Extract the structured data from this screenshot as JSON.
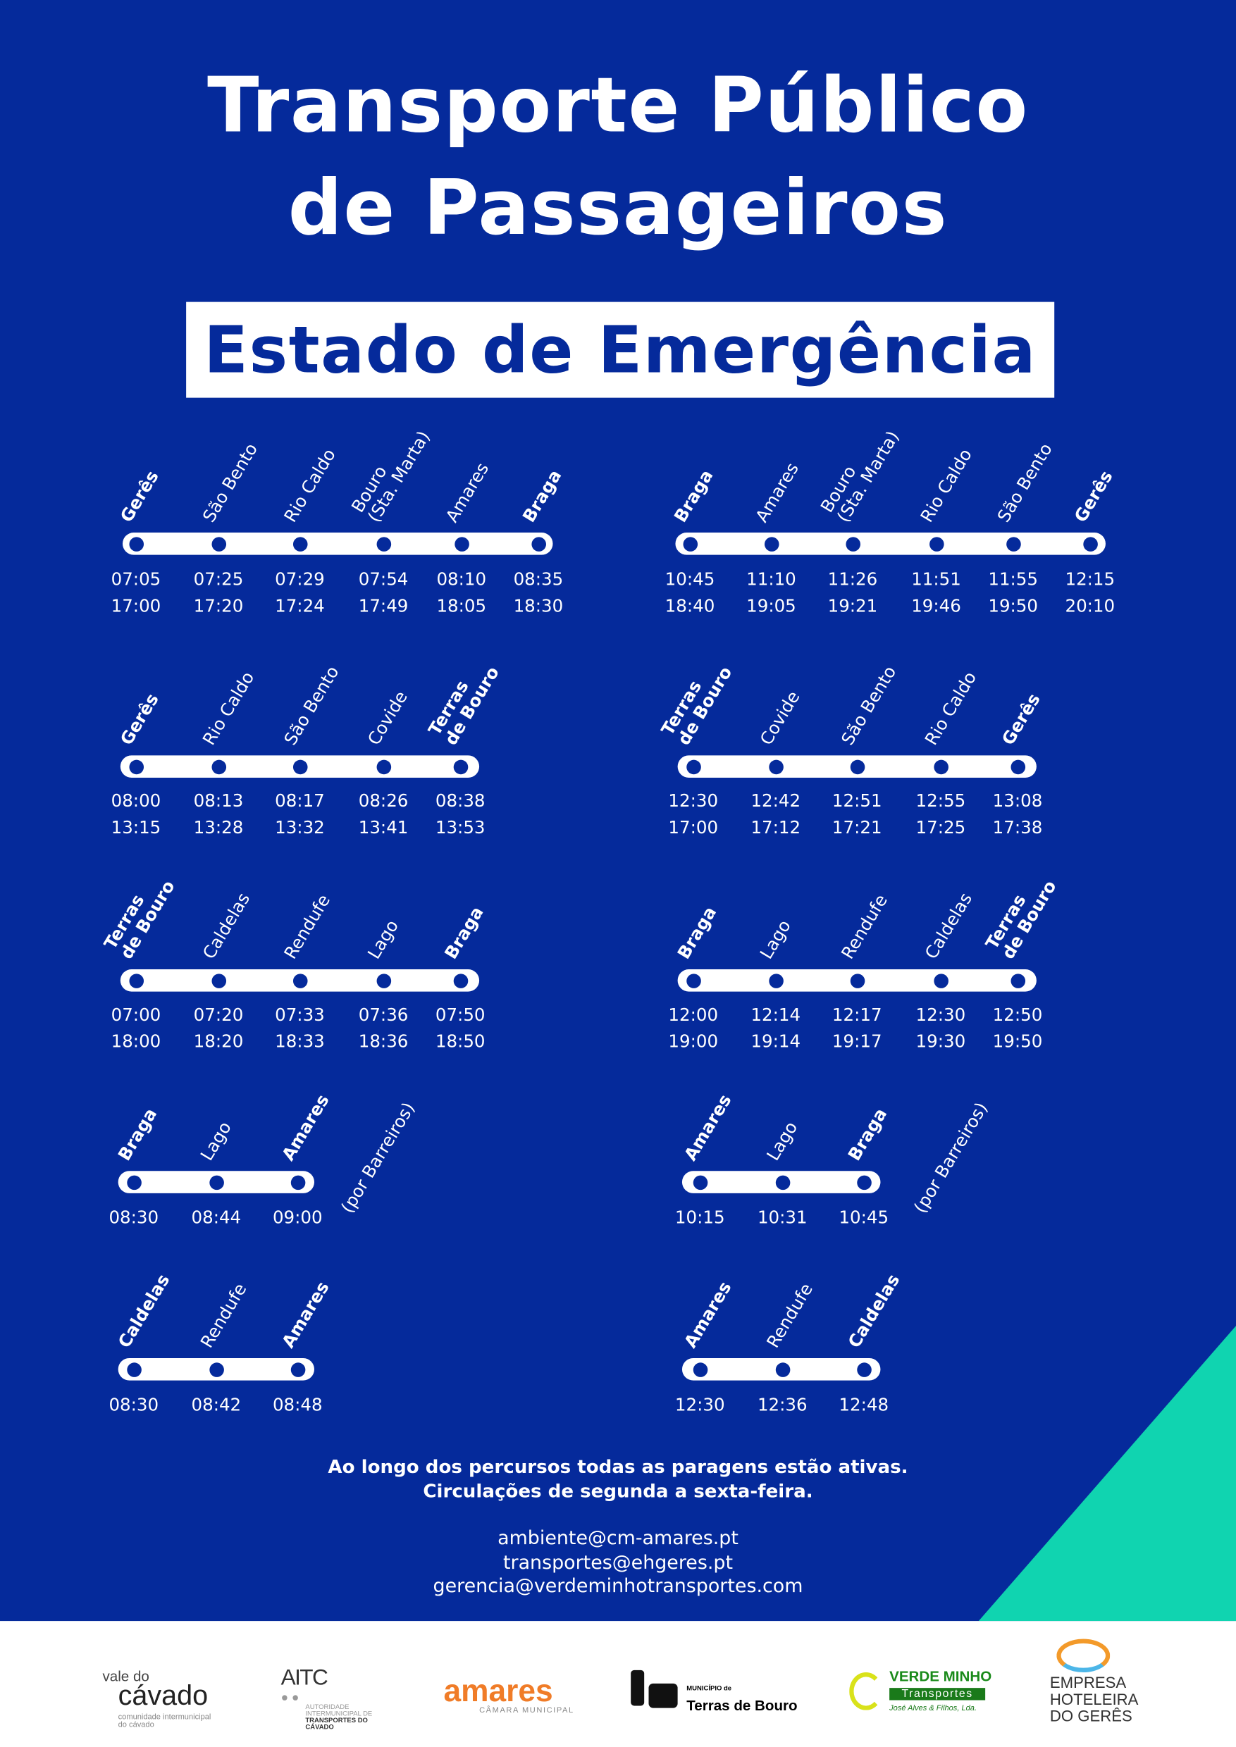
{
  "title_lines": [
    "Transporte Público",
    "de Passageiros"
  ],
  "subtitle": "Estado de Emergência",
  "colors": {
    "background": "#052a9b",
    "accent": "#10d4b0",
    "text": "#ffffff"
  },
  "routes": [
    {
      "stops": [
        {
          "name": [
            "Gerês"
          ],
          "bold": true
        },
        {
          "name": [
            "São Bento"
          ]
        },
        {
          "name": [
            "Rio Caldo"
          ]
        },
        {
          "name": [
            "Bouro",
            "(Sta. Marta)"
          ]
        },
        {
          "name": [
            "Amares"
          ]
        },
        {
          "name": [
            "Braga"
          ],
          "bold": true
        }
      ],
      "times": [
        [
          "07:05",
          "07:25",
          "07:29",
          "07:54",
          "08:10",
          "08:35"
        ],
        [
          "17:00",
          "17:20",
          "17:24",
          "17:49",
          "18:05",
          "18:30"
        ]
      ]
    },
    {
      "stops": [
        {
          "name": [
            "Braga"
          ],
          "bold": true
        },
        {
          "name": [
            "Amares"
          ]
        },
        {
          "name": [
            "Bouro",
            "(Sta. Marta)"
          ]
        },
        {
          "name": [
            "Rio Caldo"
          ]
        },
        {
          "name": [
            "São Bento"
          ]
        },
        {
          "name": [
            "Gerês"
          ],
          "bold": true
        }
      ],
      "times": [
        [
          "10:45",
          "11:10",
          "11:26",
          "11:51",
          "11:55",
          "12:15"
        ],
        [
          "18:40",
          "19:05",
          "19:21",
          "19:46",
          "19:50",
          "20:10"
        ]
      ]
    },
    {
      "stops": [
        {
          "name": [
            "Gerês"
          ],
          "bold": true
        },
        {
          "name": [
            "Rio Caldo"
          ]
        },
        {
          "name": [
            "São Bento"
          ]
        },
        {
          "name": [
            "Covide"
          ]
        },
        {
          "name": [
            "Terras",
            "de Bouro"
          ],
          "bold": true
        }
      ],
      "times": [
        [
          "08:00",
          "08:13",
          "08:17",
          "08:26",
          "08:38"
        ],
        [
          "13:15",
          "13:28",
          "13:32",
          "13:41",
          "13:53"
        ]
      ]
    },
    {
      "stops": [
        {
          "name": [
            "Terras",
            "de Bouro"
          ],
          "bold": true
        },
        {
          "name": [
            "Covide"
          ]
        },
        {
          "name": [
            "São Bento"
          ]
        },
        {
          "name": [
            "Rio Caldo"
          ]
        },
        {
          "name": [
            "Gerês"
          ],
          "bold": true
        }
      ],
      "times": [
        [
          "12:30",
          "12:42",
          "12:51",
          "12:55",
          "13:08"
        ],
        [
          "17:00",
          "17:12",
          "17:21",
          "17:25",
          "17:38"
        ]
      ]
    },
    {
      "stops": [
        {
          "name": [
            "Terras",
            "de Bouro"
          ],
          "bold": true
        },
        {
          "name": [
            "Caldelas"
          ]
        },
        {
          "name": [
            "Rendufe"
          ]
        },
        {
          "name": [
            "Lago"
          ]
        },
        {
          "name": [
            "Braga"
          ],
          "bold": true
        }
      ],
      "times": [
        [
          "07:00",
          "07:20",
          "07:33",
          "07:36",
          "07:50"
        ],
        [
          "18:00",
          "18:20",
          "18:33",
          "18:36",
          "18:50"
        ]
      ]
    },
    {
      "stops": [
        {
          "name": [
            "Braga"
          ],
          "bold": true
        },
        {
          "name": [
            "Lago"
          ]
        },
        {
          "name": [
            "Rendufe"
          ]
        },
        {
          "name": [
            "Caldelas"
          ]
        },
        {
          "name": [
            "Terras",
            "de Bouro"
          ],
          "bold": true
        }
      ],
      "times": [
        [
          "12:00",
          "12:14",
          "12:17",
          "12:30",
          "12:50"
        ],
        [
          "19:00",
          "19:14",
          "19:17",
          "19:30",
          "19:50"
        ]
      ]
    },
    {
      "stops": [
        {
          "name": [
            "Braga"
          ],
          "bold": true
        },
        {
          "name": [
            "Lago"
          ]
        },
        {
          "name": [
            "Amares"
          ],
          "bold": true
        }
      ],
      "times": [
        [
          "08:30",
          "08:44",
          "09:00"
        ]
      ],
      "note": "(por Barreiros)"
    },
    {
      "stops": [
        {
          "name": [
            "Amares"
          ],
          "bold": true
        },
        {
          "name": [
            "Lago"
          ]
        },
        {
          "name": [
            "Braga"
          ],
          "bold": true
        }
      ],
      "times": [
        [
          "10:15",
          "10:31",
          "10:45"
        ]
      ],
      "note": "(por Barreiros)"
    },
    {
      "stops": [
        {
          "name": [
            "Caldelas"
          ],
          "bold": true
        },
        {
          "name": [
            "Rendufe"
          ]
        },
        {
          "name": [
            "Amares"
          ],
          "bold": true
        }
      ],
      "times": [
        [
          "08:30",
          "08:42",
          "08:48"
        ]
      ]
    },
    {
      "stops": [
        {
          "name": [
            "Amares"
          ],
          "bold": true
        },
        {
          "name": [
            "Rendufe"
          ]
        },
        {
          "name": [
            "Caldelas"
          ],
          "bold": true
        }
      ],
      "times": [
        [
          "12:30",
          "12:36",
          "12:48"
        ]
      ]
    }
  ],
  "footer": {
    "notes": [
      "Ao longo dos percursos todas as paragens estão ativas.",
      "Circulações de segunda a sexta-feira."
    ],
    "emails": [
      "ambiente@cm-amares.pt",
      "transportes@ehgeres.pt",
      "gerencia@verdeminhotransportes.com"
    ]
  },
  "logos": {
    "vale_do_cavado": [
      "vale do",
      "cávado",
      "comunidade intermunicipal do cávado"
    ],
    "aitc": [
      "AITC",
      "AUTORIDADE INTERMUNICIPAL DE",
      "TRANSPORTES DO CÁVADO"
    ],
    "amares": [
      "amares",
      "CÂMARA MUNICIPAL"
    ],
    "terras_de_bouro": [
      "MUNICÍPIO de",
      "Terras de Bouro"
    ],
    "verde_minho": [
      "VERDE MINHO",
      "Transportes",
      "José Alves & Filhos, Lda."
    ],
    "empresa_hoteleira": [
      "EMPRESA",
      "HOTELEIRA",
      "DO GERÊS"
    ]
  }
}
